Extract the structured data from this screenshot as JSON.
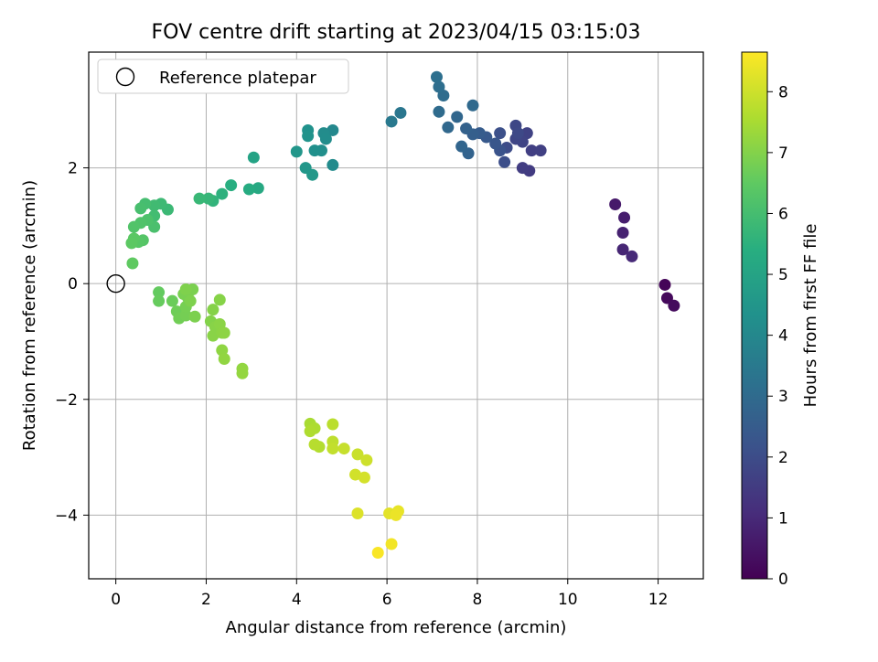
{
  "chart_data": {
    "type": "scatter",
    "title": "FOV centre drift starting at 2023/04/15 03:15:03",
    "xlabel": "Angular distance from reference (arcmin)",
    "ylabel": "Rotation from reference (arcmin)",
    "xlim": [
      -0.6,
      13.0
    ],
    "ylim": [
      -5.1,
      4.0
    ],
    "x_ticks": [
      0,
      2,
      4,
      6,
      8,
      10,
      12
    ],
    "x_tick_labels": [
      "0",
      "2",
      "4",
      "6",
      "8",
      "10",
      "12"
    ],
    "y_ticks": [
      -4,
      -2,
      0,
      2
    ],
    "y_tick_labels": [
      "−4",
      "−2",
      "0",
      "2"
    ],
    "grid": true,
    "legend": {
      "placement": "top-left",
      "entries": [
        "Reference platepar"
      ]
    },
    "colorbar": {
      "label": "Hours from first FF file",
      "colormap": "viridis",
      "range": [
        0,
        8.65
      ],
      "ticks": [
        0,
        1,
        2,
        3,
        4,
        5,
        6,
        7,
        8
      ],
      "tick_labels": [
        "0",
        "1",
        "2",
        "3",
        "4",
        "5",
        "6",
        "7",
        "8"
      ]
    },
    "reference_point": {
      "name": "Reference platepar",
      "x": 0,
      "y": 0
    },
    "points": [
      {
        "x": 12.15,
        "y": -0.02,
        "c": 0.1
      },
      {
        "x": 12.2,
        "y": -0.25,
        "c": 0.2
      },
      {
        "x": 12.35,
        "y": -0.38,
        "c": 0.25
      },
      {
        "x": 11.05,
        "y": 1.37,
        "c": 0.6
      },
      {
        "x": 11.25,
        "y": 1.14,
        "c": 0.7
      },
      {
        "x": 11.22,
        "y": 0.88,
        "c": 0.8
      },
      {
        "x": 11.22,
        "y": 0.59,
        "c": 0.9
      },
      {
        "x": 11.42,
        "y": 0.47,
        "c": 1.0
      },
      {
        "x": 9.15,
        "y": 1.95,
        "c": 1.5
      },
      {
        "x": 9.0,
        "y": 2.0,
        "c": 1.55
      },
      {
        "x": 9.2,
        "y": 2.3,
        "c": 1.6
      },
      {
        "x": 9.4,
        "y": 2.3,
        "c": 1.65
      },
      {
        "x": 9.1,
        "y": 2.6,
        "c": 1.7
      },
      {
        "x": 9.0,
        "y": 2.45,
        "c": 1.75
      },
      {
        "x": 8.85,
        "y": 2.5,
        "c": 1.8
      },
      {
        "x": 8.85,
        "y": 2.73,
        "c": 1.85
      },
      {
        "x": 8.9,
        "y": 2.6,
        "c": 1.9
      },
      {
        "x": 8.65,
        "y": 2.35,
        "c": 2.0
      },
      {
        "x": 8.6,
        "y": 2.1,
        "c": 2.05
      },
      {
        "x": 8.5,
        "y": 2.6,
        "c": 2.1
      },
      {
        "x": 8.5,
        "y": 2.3,
        "c": 2.2
      },
      {
        "x": 8.4,
        "y": 2.42,
        "c": 2.3
      },
      {
        "x": 8.2,
        "y": 2.53,
        "c": 2.4
      },
      {
        "x": 8.05,
        "y": 2.6,
        "c": 2.5
      },
      {
        "x": 7.9,
        "y": 2.58,
        "c": 2.6
      },
      {
        "x": 7.75,
        "y": 2.68,
        "c": 2.7
      },
      {
        "x": 7.8,
        "y": 2.25,
        "c": 2.75
      },
      {
        "x": 7.65,
        "y": 2.37,
        "c": 2.8
      },
      {
        "x": 7.55,
        "y": 2.88,
        "c": 2.85
      },
      {
        "x": 7.35,
        "y": 2.7,
        "c": 2.9
      },
      {
        "x": 7.9,
        "y": 3.08,
        "c": 2.95
      },
      {
        "x": 7.15,
        "y": 2.97,
        "c": 3.0
      },
      {
        "x": 7.25,
        "y": 3.25,
        "c": 3.05
      },
      {
        "x": 7.15,
        "y": 3.4,
        "c": 3.1
      },
      {
        "x": 7.1,
        "y": 3.57,
        "c": 3.15
      },
      {
        "x": 6.3,
        "y": 2.95,
        "c": 3.4
      },
      {
        "x": 6.1,
        "y": 2.8,
        "c": 3.5
      },
      {
        "x": 4.8,
        "y": 2.65,
        "c": 4.0
      },
      {
        "x": 4.8,
        "y": 2.05,
        "c": 4.1
      },
      {
        "x": 4.6,
        "y": 2.6,
        "c": 4.15
      },
      {
        "x": 4.65,
        "y": 2.5,
        "c": 4.2
      },
      {
        "x": 4.55,
        "y": 2.3,
        "c": 4.25
      },
      {
        "x": 4.4,
        "y": 2.3,
        "c": 4.3
      },
      {
        "x": 4.25,
        "y": 2.65,
        "c": 4.35
      },
      {
        "x": 4.25,
        "y": 2.55,
        "c": 4.4
      },
      {
        "x": 4.0,
        "y": 2.28,
        "c": 4.5
      },
      {
        "x": 4.2,
        "y": 2.0,
        "c": 4.55
      },
      {
        "x": 4.35,
        "y": 1.88,
        "c": 4.6
      },
      {
        "x": 3.05,
        "y": 2.18,
        "c": 5.0
      },
      {
        "x": 3.15,
        "y": 1.65,
        "c": 5.2
      },
      {
        "x": 2.95,
        "y": 1.63,
        "c": 5.3
      },
      {
        "x": 2.55,
        "y": 1.7,
        "c": 5.4
      },
      {
        "x": 2.35,
        "y": 1.55,
        "c": 5.5
      },
      {
        "x": 2.15,
        "y": 1.43,
        "c": 5.6
      },
      {
        "x": 2.05,
        "y": 1.47,
        "c": 5.7
      },
      {
        "x": 1.85,
        "y": 1.47,
        "c": 5.75
      },
      {
        "x": 1.15,
        "y": 1.28,
        "c": 5.8
      },
      {
        "x": 1.0,
        "y": 1.38,
        "c": 5.85
      },
      {
        "x": 0.85,
        "y": 1.35,
        "c": 5.9
      },
      {
        "x": 0.85,
        "y": 1.17,
        "c": 5.95
      },
      {
        "x": 0.65,
        "y": 1.38,
        "c": 6.0
      },
      {
        "x": 0.55,
        "y": 1.3,
        "c": 6.05
      },
      {
        "x": 0.85,
        "y": 0.98,
        "c": 6.1
      },
      {
        "x": 0.7,
        "y": 1.1,
        "c": 6.15
      },
      {
        "x": 0.55,
        "y": 1.05,
        "c": 6.2
      },
      {
        "x": 0.4,
        "y": 0.98,
        "c": 6.25
      },
      {
        "x": 0.6,
        "y": 0.75,
        "c": 6.3
      },
      {
        "x": 0.5,
        "y": 0.72,
        "c": 6.35
      },
      {
        "x": 0.4,
        "y": 0.78,
        "c": 6.4
      },
      {
        "x": 0.35,
        "y": 0.7,
        "c": 6.45
      },
      {
        "x": 0.37,
        "y": 0.35,
        "c": 6.5
      },
      {
        "x": 0.95,
        "y": -0.15,
        "c": 6.55
      },
      {
        "x": 0.95,
        "y": -0.3,
        "c": 6.6
      },
      {
        "x": 1.25,
        "y": -0.3,
        "c": 6.65
      },
      {
        "x": 1.35,
        "y": -0.48,
        "c": 6.7
      },
      {
        "x": 1.4,
        "y": -0.6,
        "c": 6.75
      },
      {
        "x": 1.55,
        "y": -0.55,
        "c": 6.8
      },
      {
        "x": 1.55,
        "y": -0.4,
        "c": 6.82
      },
      {
        "x": 1.6,
        "y": -0.25,
        "c": 6.84
      },
      {
        "x": 1.5,
        "y": -0.18,
        "c": 6.86
      },
      {
        "x": 1.7,
        "y": -0.1,
        "c": 6.88
      },
      {
        "x": 1.75,
        "y": -0.57,
        "c": 6.9
      },
      {
        "x": 1.65,
        "y": -0.3,
        "c": 6.92
      },
      {
        "x": 1.55,
        "y": -0.1,
        "c": 6.94
      },
      {
        "x": 2.1,
        "y": -0.65,
        "c": 7.0
      },
      {
        "x": 2.15,
        "y": -0.45,
        "c": 7.02
      },
      {
        "x": 2.3,
        "y": -0.28,
        "c": 7.04
      },
      {
        "x": 2.2,
        "y": -0.75,
        "c": 7.06
      },
      {
        "x": 2.15,
        "y": -0.9,
        "c": 7.08
      },
      {
        "x": 2.3,
        "y": -0.7,
        "c": 7.1
      },
      {
        "x": 2.35,
        "y": -0.85,
        "c": 7.12
      },
      {
        "x": 2.4,
        "y": -0.85,
        "c": 7.14
      },
      {
        "x": 2.35,
        "y": -1.15,
        "c": 7.16
      },
      {
        "x": 2.4,
        "y": -1.3,
        "c": 7.18
      },
      {
        "x": 2.8,
        "y": -1.47,
        "c": 7.2
      },
      {
        "x": 2.8,
        "y": -1.55,
        "c": 7.22
      },
      {
        "x": 4.3,
        "y": -2.42,
        "c": 7.5
      },
      {
        "x": 4.4,
        "y": -2.5,
        "c": 7.55
      },
      {
        "x": 4.3,
        "y": -2.55,
        "c": 7.6
      },
      {
        "x": 4.5,
        "y": -2.82,
        "c": 7.65
      },
      {
        "x": 4.4,
        "y": -2.78,
        "c": 7.7
      },
      {
        "x": 4.8,
        "y": -2.43,
        "c": 7.75
      },
      {
        "x": 4.8,
        "y": -2.73,
        "c": 7.8
      },
      {
        "x": 4.8,
        "y": -2.85,
        "c": 7.85
      },
      {
        "x": 5.05,
        "y": -2.85,
        "c": 7.9
      },
      {
        "x": 5.35,
        "y": -2.95,
        "c": 7.95
      },
      {
        "x": 5.55,
        "y": -3.05,
        "c": 8.0
      },
      {
        "x": 5.3,
        "y": -3.3,
        "c": 8.05
      },
      {
        "x": 5.5,
        "y": -3.35,
        "c": 8.1
      },
      {
        "x": 5.35,
        "y": -3.97,
        "c": 8.2
      },
      {
        "x": 6.05,
        "y": -3.97,
        "c": 8.3
      },
      {
        "x": 6.25,
        "y": -3.93,
        "c": 8.35
      },
      {
        "x": 6.2,
        "y": -4.0,
        "c": 8.4
      },
      {
        "x": 6.1,
        "y": -4.5,
        "c": 8.5
      },
      {
        "x": 5.8,
        "y": -4.65,
        "c": 8.6
      }
    ]
  }
}
